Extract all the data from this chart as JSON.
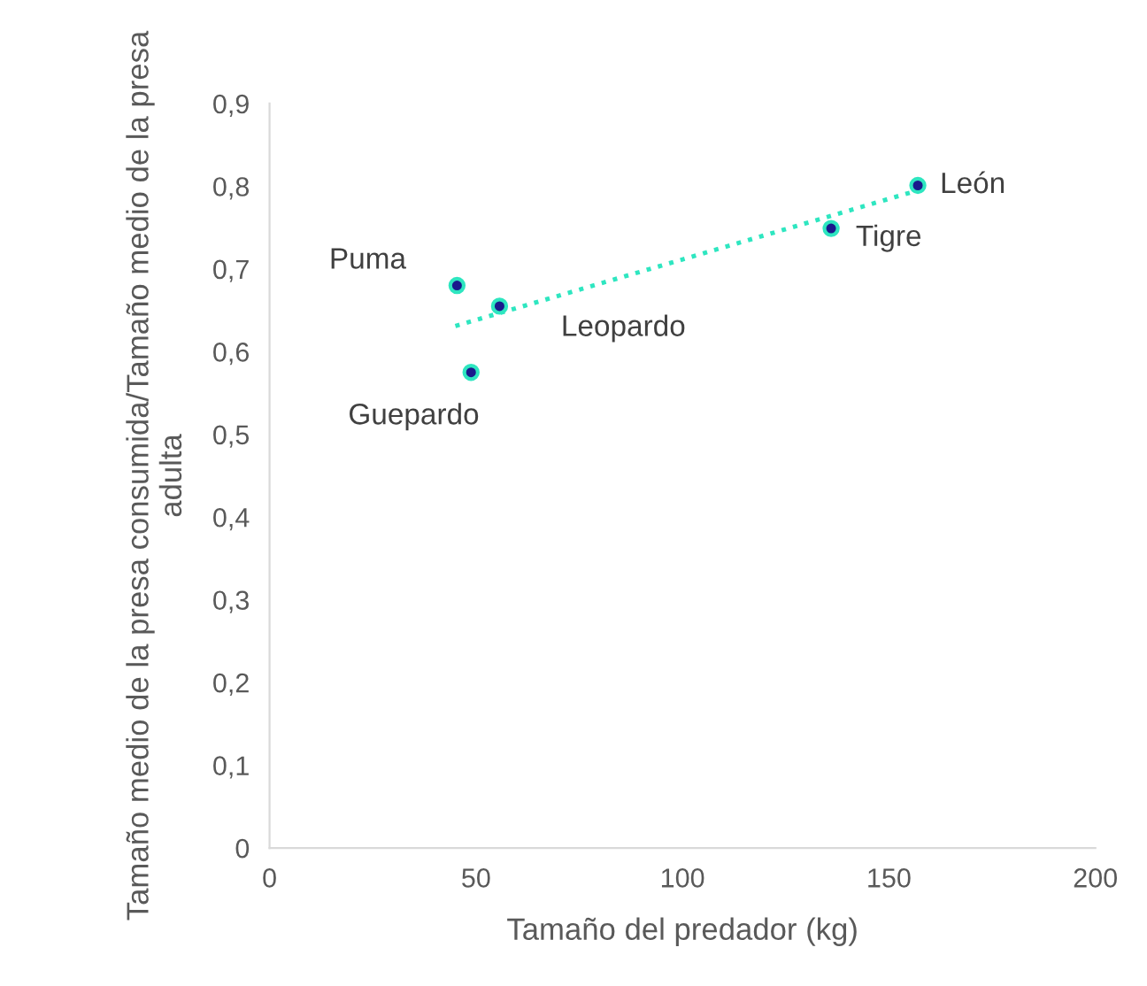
{
  "chart_data": {
    "type": "scatter",
    "xlabel": "Tamaño del predador (kg)",
    "ylabel": "Tamaño medio de la presa consumida/Tamaño medio de la presa adulta",
    "xlim": [
      0,
      200
    ],
    "ylim": [
      0,
      0.9
    ],
    "xticks": [
      0,
      50,
      100,
      150,
      200
    ],
    "yticks": [
      0,
      {
        "value": 0.1,
        "label": "0,1"
      },
      {
        "value": 0.2,
        "label": "0,2"
      },
      {
        "value": 0.3,
        "label": "0,3"
      },
      {
        "value": 0.4,
        "label": "0,4"
      },
      {
        "value": 0.5,
        "label": "0,5"
      },
      {
        "value": 0.6,
        "label": "0,6"
      },
      {
        "value": 0.7,
        "label": "0,7"
      },
      {
        "value": 0.8,
        "label": "0,8"
      },
      {
        "value": 0.9,
        "label": "0,9"
      }
    ],
    "grid": false,
    "legend": false,
    "marker": "circle",
    "series": [
      {
        "color": "#1a1a8c",
        "x": [
          45.4,
          55.7,
          48.8,
          136,
          157
        ],
        "values": [
          0.68,
          0.655,
          0.575,
          0.749,
          0.801
        ]
      },
      {
        "type": "line",
        "color": "#2ee6c0",
        "line_style": "dotted",
        "marker": "none",
        "x": [
          45,
          157
        ],
        "values": [
          0.631,
          0.795
        ]
      }
    ],
    "annotations": [
      {
        "text": "Puma",
        "x": 45.4,
        "y": 0.68
      },
      {
        "text": "Leopardo",
        "x": 55.7,
        "y": 0.655
      },
      {
        "text": "Guepardo",
        "x": 48.8,
        "y": 0.575
      },
      {
        "text": "Tigre",
        "x": 136,
        "y": 0.749
      },
      {
        "text": "León",
        "x": 157,
        "y": 0.801
      }
    ]
  }
}
